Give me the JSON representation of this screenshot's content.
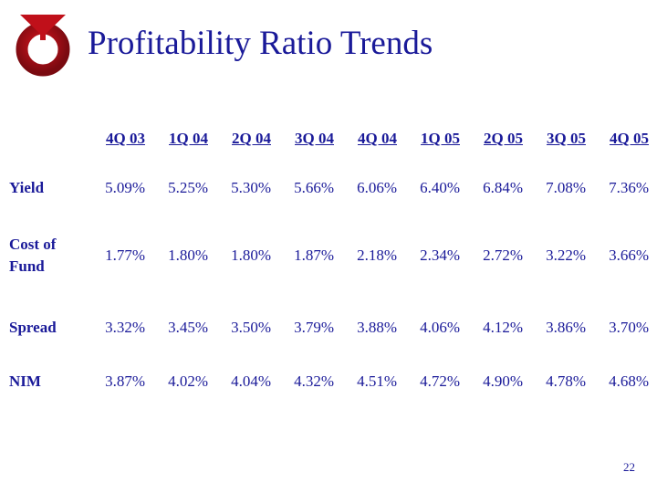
{
  "title": "Profitability Ratio Trends",
  "logo_colors": {
    "primary": "#c0101a",
    "dark": "#7a0a10"
  },
  "text_color": "#1a1a99",
  "table": {
    "columns": [
      "4Q 03",
      "1Q 04",
      "2Q 04",
      "3Q 04",
      "4Q 04",
      "1Q 05",
      "2Q 05",
      "3Q 05",
      "4Q 05"
    ],
    "rows": [
      {
        "label": "Yield",
        "values": [
          "5.09%",
          "5.25%",
          "5.30%",
          "5.66%",
          "6.06%",
          "6.40%",
          "6.84%",
          "7.08%",
          "7.36%"
        ]
      },
      {
        "label": "Cost of Fund",
        "values": [
          "1.77%",
          "1.80%",
          "1.80%",
          "1.87%",
          "2.18%",
          "2.34%",
          "2.72%",
          "3.22%",
          "3.66%"
        ]
      },
      {
        "label": "Spread",
        "values": [
          "3.32%",
          "3.45%",
          "3.50%",
          "3.79%",
          "3.88%",
          "4.06%",
          "4.12%",
          "3.86%",
          "3.70%"
        ]
      },
      {
        "label": "NIM",
        "values": [
          "3.87%",
          "4.02%",
          "4.04%",
          "4.32%",
          "4.51%",
          "4.72%",
          "4.90%",
          "4.78%",
          "4.68%"
        ]
      }
    ]
  },
  "page_number": "22"
}
